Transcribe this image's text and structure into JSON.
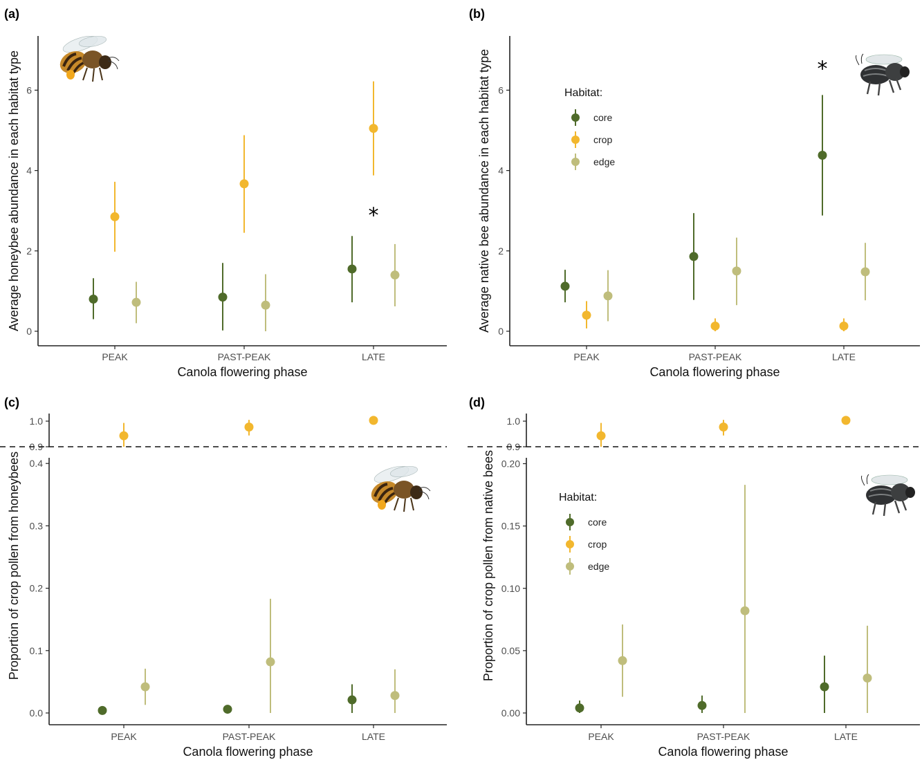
{
  "colors": {
    "core": "#4f6b2a",
    "crop": "#f2b72e",
    "edge": "#bfbd7c"
  },
  "chart_data": [
    {
      "type": "scatter",
      "panel": "(a)",
      "xlabel": "Canola flowering phase",
      "ylabel": "Average honeybee abundance in each habitat type",
      "categories": [
        "PEAK",
        "PAST-PEAK",
        "LATE"
      ],
      "yticks": [
        "0",
        "2",
        "4",
        "6"
      ],
      "ylim": [
        0,
        7.3
      ],
      "legend": null,
      "series": [
        {
          "key": "core",
          "points": [
            {
              "x": "PEAK",
              "y": 0.8,
              "lo": 0.3,
              "hi": 1.32
            },
            {
              "x": "PAST-PEAK",
              "y": 0.85,
              "lo": 0.02,
              "hi": 1.7
            },
            {
              "x": "LATE",
              "y": 1.55,
              "lo": 0.72,
              "hi": 2.37
            }
          ]
        },
        {
          "key": "crop",
          "points": [
            {
              "x": "PEAK",
              "y": 2.85,
              "lo": 1.98,
              "hi": 3.72
            },
            {
              "x": "PAST-PEAK",
              "y": 3.67,
              "lo": 2.45,
              "hi": 4.88
            },
            {
              "x": "LATE",
              "y": 5.05,
              "lo": 3.88,
              "hi": 6.22
            }
          ]
        },
        {
          "key": "edge",
          "points": [
            {
              "x": "PEAK",
              "y": 0.72,
              "lo": 0.2,
              "hi": 1.23
            },
            {
              "x": "PAST-PEAK",
              "y": 0.65,
              "lo": 0.0,
              "hi": 1.42
            },
            {
              "x": "LATE",
              "y": 1.4,
              "lo": 0.62,
              "hi": 2.17
            }
          ]
        }
      ],
      "annotation": {
        "text": "*",
        "x": "LATE",
        "y": 2.95
      }
    },
    {
      "type": "scatter",
      "panel": "(b)",
      "xlabel": "Canola flowering phase",
      "ylabel": "Average native bee abundance in each habitat type",
      "categories": [
        "PEAK",
        "PAST-PEAK",
        "LATE"
      ],
      "yticks": [
        "0",
        "2",
        "4",
        "6"
      ],
      "ylim": [
        0,
        7.3
      ],
      "legend": {
        "title": "Habitat:",
        "items": [
          "core",
          "crop",
          "edge"
        ]
      },
      "series": [
        {
          "key": "core",
          "points": [
            {
              "x": "PEAK",
              "y": 1.12,
              "lo": 0.72,
              "hi": 1.53
            },
            {
              "x": "PAST-PEAK",
              "y": 1.86,
              "lo": 0.78,
              "hi": 2.94
            },
            {
              "x": "LATE",
              "y": 4.38,
              "lo": 2.88,
              "hi": 5.88
            }
          ]
        },
        {
          "key": "crop",
          "points": [
            {
              "x": "PEAK",
              "y": 0.4,
              "lo": 0.07,
              "hi": 0.75
            },
            {
              "x": "PAST-PEAK",
              "y": 0.13,
              "lo": 0.0,
              "hi": 0.32
            },
            {
              "x": "LATE",
              "y": 0.13,
              "lo": 0.0,
              "hi": 0.32
            }
          ]
        },
        {
          "key": "edge",
          "points": [
            {
              "x": "PEAK",
              "y": 0.88,
              "lo": 0.25,
              "hi": 1.52
            },
            {
              "x": "PAST-PEAK",
              "y": 1.5,
              "lo": 0.65,
              "hi": 2.33
            },
            {
              "x": "LATE",
              "y": 1.48,
              "lo": 0.77,
              "hi": 2.2
            }
          ]
        }
      ],
      "annotation": {
        "text": "*",
        "x": "LATE",
        "y": 6.6
      }
    },
    {
      "type": "scatter",
      "panel": "(c)",
      "xlabel": "Canola flowering phase",
      "ylabel": "Proportion of crop pollen from honeybees",
      "categories": [
        "PEAK",
        "PAST-PEAK",
        "LATE"
      ],
      "broken_axis": true,
      "upper_yticks": [
        "0.9",
        "1.0"
      ],
      "upper_ylim": [
        0.9,
        1.0
      ],
      "lower_yticks": [
        "0.0",
        "0.1",
        "0.2",
        "0.3",
        "0.4"
      ],
      "lower_ylim": [
        0,
        0.4
      ],
      "legend": null,
      "series": [
        {
          "key": "core",
          "points": [
            {
              "x": "PEAK",
              "y": 0.004,
              "lo": 0.0,
              "hi": 0.008
            },
            {
              "x": "PAST-PEAK",
              "y": 0.006,
              "lo": 0.0,
              "hi": 0.012
            },
            {
              "x": "LATE",
              "y": 0.021,
              "lo": 0.0,
              "hi": 0.046
            }
          ]
        },
        {
          "key": "crop",
          "points": [
            {
              "x": "PEAK",
              "y": 0.943,
              "lo": 0.9,
              "hi": 0.993
            },
            {
              "x": "PAST-PEAK",
              "y": 0.977,
              "lo": 0.944,
              "hi": 1.005
            },
            {
              "x": "LATE",
              "y": 1.003,
              "lo": 0.996,
              "hi": 1.008
            }
          ]
        },
        {
          "key": "edge",
          "points": [
            {
              "x": "PEAK",
              "y": 0.042,
              "lo": 0.013,
              "hi": 0.071
            },
            {
              "x": "PAST-PEAK",
              "y": 0.082,
              "lo": 0.0,
              "hi": 0.183
            },
            {
              "x": "LATE",
              "y": 0.028,
              "lo": 0.0,
              "hi": 0.07
            }
          ]
        }
      ]
    },
    {
      "type": "scatter",
      "panel": "(d)",
      "xlabel": "Canola flowering phase",
      "ylabel": "Proportion of crop pollen from native bees",
      "categories": [
        "PEAK",
        "PAST-PEAK",
        "LATE"
      ],
      "broken_axis": true,
      "upper_yticks": [
        "0.9",
        "1.0"
      ],
      "upper_ylim": [
        0.9,
        1.0
      ],
      "lower_yticks": [
        "0.00",
        "0.05",
        "0.10",
        "0.15",
        "0.20"
      ],
      "lower_ylim": [
        0,
        0.2
      ],
      "legend": {
        "title": "Habitat:",
        "items": [
          "core",
          "crop",
          "edge"
        ]
      },
      "series": [
        {
          "key": "core",
          "points": [
            {
              "x": "PEAK",
              "y": 0.004,
              "lo": 0.0,
              "hi": 0.01
            },
            {
              "x": "PAST-PEAK",
              "y": 0.006,
              "lo": 0.0,
              "hi": 0.014
            },
            {
              "x": "LATE",
              "y": 0.021,
              "lo": 0.0,
              "hi": 0.046
            }
          ]
        },
        {
          "key": "crop",
          "points": [
            {
              "x": "PEAK",
              "y": 0.943,
              "lo": 0.9,
              "hi": 0.993
            },
            {
              "x": "PAST-PEAK",
              "y": 0.977,
              "lo": 0.944,
              "hi": 1.005
            },
            {
              "x": "LATE",
              "y": 1.003,
              "lo": 0.996,
              "hi": 1.008
            }
          ]
        },
        {
          "key": "edge",
          "points": [
            {
              "x": "PEAK",
              "y": 0.042,
              "lo": 0.013,
              "hi": 0.071
            },
            {
              "x": "PAST-PEAK",
              "y": 0.082,
              "lo": 0.0,
              "hi": 0.183
            },
            {
              "x": "LATE",
              "y": 0.028,
              "lo": 0.0,
              "hi": 0.07
            }
          ]
        }
      ]
    }
  ],
  "illustrations": [
    {
      "panel": "(a)",
      "icon": "honeybee-icon"
    },
    {
      "panel": "(b)",
      "icon": "native-bee-icon"
    },
    {
      "panel": "(c)",
      "icon": "honeybee-icon"
    },
    {
      "panel": "(d)",
      "icon": "native-bee-icon"
    }
  ]
}
